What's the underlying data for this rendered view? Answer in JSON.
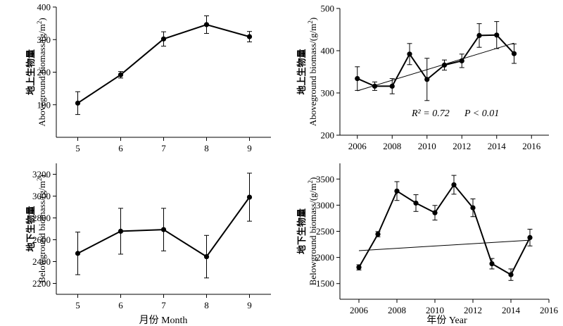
{
  "x_titles": {
    "month": "月份 Month",
    "year": "年份 Year"
  },
  "chart_data": [
    {
      "id": "above-month",
      "type": "line",
      "ylabel_cn": "地上生物量",
      "ylabel_en": "Aboveground biomass/(g/m",
      "ylabel_sup": "2",
      "ylabel_end": ")",
      "x": [
        5,
        6,
        7,
        8,
        9
      ],
      "y": [
        105,
        192,
        302,
        346,
        309
      ],
      "err": [
        35,
        10,
        22,
        27,
        16
      ],
      "xlim": [
        4.5,
        9.5
      ],
      "ylim": [
        0,
        400
      ],
      "xticks": [
        5,
        6,
        7,
        8,
        9
      ],
      "yticks": [
        100,
        200,
        300,
        400
      ],
      "grid": false
    },
    {
      "id": "above-year",
      "type": "line",
      "ylabel_cn": "地上生物量",
      "ylabel_en": "Aboveground biomass/(g/m",
      "ylabel_sup": "2",
      "ylabel_end": ")",
      "x": [
        2006,
        2007,
        2008,
        2009,
        2010,
        2011,
        2012,
        2013,
        2014,
        2015
      ],
      "y": [
        334,
        316,
        316,
        392,
        332,
        366,
        376,
        436,
        437,
        393
      ],
      "err": [
        28,
        10,
        18,
        25,
        50,
        12,
        16,
        28,
        32,
        23
      ],
      "trend": {
        "x": [
          2006,
          2015
        ],
        "y": [
          305,
          418
        ]
      },
      "stat": {
        "r2": "R² = 0.72",
        "p": "P < 0.01"
      },
      "xlim": [
        2005,
        2017
      ],
      "ylim": [
        200,
        500
      ],
      "xticks": [
        2006,
        2008,
        2010,
        2012,
        2014,
        2016
      ],
      "yticks": [
        200,
        300,
        400,
        500
      ],
      "grid": false
    },
    {
      "id": "below-month",
      "type": "line",
      "ylabel_cn": "地下生物量",
      "ylabel_en": "Belowground biomass/(g/m",
      "ylabel_sup": "2",
      "ylabel_end": ")",
      "x": [
        5,
        6,
        7,
        8,
        9
      ],
      "y": [
        2475,
        2678,
        2693,
        2445,
        2990
      ],
      "err": [
        195,
        210,
        195,
        195,
        220
      ],
      "xlim": [
        4.5,
        9.5
      ],
      "ylim": [
        2100,
        3300
      ],
      "xticks": [
        5,
        6,
        7,
        8,
        9
      ],
      "yticks": [
        2200,
        2400,
        2600,
        2800,
        3000,
        3200
      ],
      "grid": false
    },
    {
      "id": "below-year",
      "type": "line",
      "ylabel_cn": "地下生物量",
      "ylabel_en": "Belowground biomass/(g/m",
      "ylabel_sup": "2",
      "ylabel_end": ")",
      "x": [
        2006,
        2007,
        2008,
        2009,
        2010,
        2011,
        2012,
        2013,
        2014,
        2015
      ],
      "y": [
        1810,
        2445,
        3270,
        3040,
        2855,
        3390,
        2950,
        1880,
        1670,
        2380
      ],
      "err": [
        50,
        50,
        180,
        160,
        140,
        180,
        170,
        100,
        110,
        160
      ],
      "trend": {
        "x": [
          2006,
          2015
        ],
        "y": [
          2130,
          2330
        ]
      },
      "xlim": [
        2005,
        2016
      ],
      "ylim": [
        1200,
        3800
      ],
      "xticks": [
        2006,
        2008,
        2010,
        2012,
        2014,
        2016
      ],
      "yticks": [
        1500,
        2000,
        2500,
        3000,
        3500
      ],
      "grid": false
    }
  ]
}
